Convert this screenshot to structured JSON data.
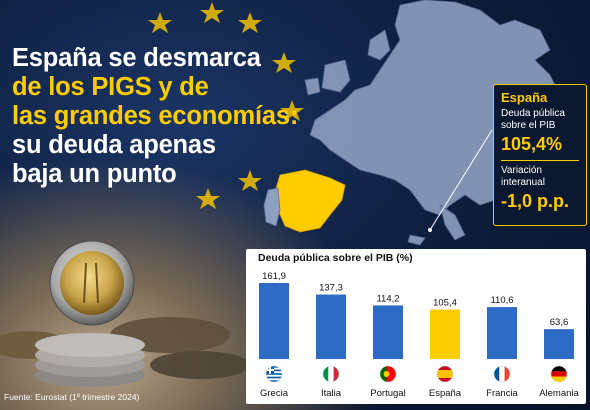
{
  "headline": {
    "line1": "España se desmarca",
    "line2": "de los PIGS y de",
    "line3": "las grandes economías:",
    "line4": "su deuda apenas",
    "line5": "baja un punto"
  },
  "info_box": {
    "country": "España",
    "debt_label": "Deuda pública sobre el PIB",
    "debt_value": "105,4%",
    "change_label": "Variación interanual",
    "change_value": "-1,0 p.p."
  },
  "source": "Fuente: Eurostat (1º trimestre 2024)",
  "colors": {
    "accent": "#ffcc00",
    "bar": "#2e6bc4",
    "highlight_bar": "#ffcc00",
    "background": "#0d1c3a"
  },
  "chart_data": {
    "type": "bar",
    "title": "Deuda pública sobre el PIB (%)",
    "categories": [
      "Grecia",
      "Italia",
      "Portugal",
      "España",
      "Francia",
      "Alemania"
    ],
    "values": [
      161.9,
      137.3,
      114.2,
      105.4,
      110.6,
      63.6
    ],
    "value_labels": [
      "161,9",
      "137,3",
      "114,2",
      "105,4",
      "110,6",
      "63,6"
    ],
    "highlight": "España",
    "flags": [
      "greece-flag-icon",
      "italy-flag-icon",
      "portugal-flag-icon",
      "spain-flag-icon",
      "france-flag-icon",
      "germany-flag-icon"
    ],
    "ylim": [
      0,
      161.9
    ],
    "grid": false
  }
}
